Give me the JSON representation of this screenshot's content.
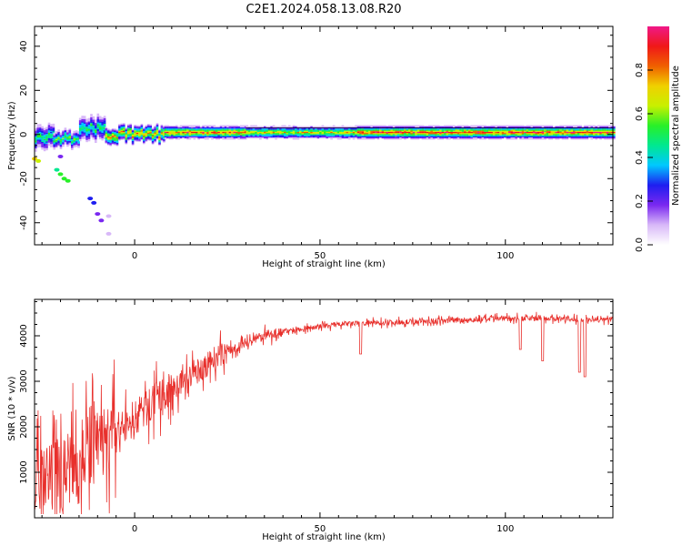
{
  "title": "C2E1.2024.058.13.08.R20",
  "colors": {
    "snr_line": "#e8302c",
    "colormap": [
      "#ffffff",
      "#d8b8f8",
      "#7a28f0",
      "#1e1ef0",
      "#00c8ff",
      "#00e890",
      "#28f028",
      "#c8f000",
      "#f0d000",
      "#f06000",
      "#f01818",
      "#f01888"
    ]
  },
  "chart_data": [
    {
      "type": "heatmap",
      "xlabel": "Height of straight line (km)",
      "ylabel": "Frequency (Hz)",
      "xlim": [
        -27,
        129
      ],
      "ylim": [
        -50,
        49
      ],
      "xticks": [
        0,
        50,
        100
      ],
      "yticks": [
        -40,
        -20,
        0,
        20,
        40
      ],
      "colorbar": {
        "label": "Normalized spectral amplitude",
        "range": [
          0,
          1
        ],
        "ticks": [
          "0.0",
          "0.2",
          "0.4",
          "0.6",
          "0.8"
        ]
      },
      "segments": [
        {
          "x": [
            -27,
            -22
          ],
          "freq": -1,
          "width": 6,
          "peak": 0.55
        },
        {
          "x": [
            -22,
            -15
          ],
          "freq": -2,
          "width": 4,
          "peak": 0.6
        },
        {
          "x": [
            -15,
            -8
          ],
          "freq": 3,
          "width": 6,
          "peak": 0.55
        },
        {
          "x": [
            -8,
            8
          ],
          "freq": 0,
          "width": 4,
          "peak": 0.85
        },
        {
          "x": [
            8,
            30
          ],
          "freq": 1,
          "width": 3,
          "peak": 0.9
        },
        {
          "x": [
            30,
            60
          ],
          "freq": 1,
          "width": 3,
          "peak": 0.75
        },
        {
          "x": [
            60,
            129
          ],
          "freq": 1,
          "width": 3,
          "peak": 0.95
        }
      ],
      "scatter_tail": [
        {
          "x": -27,
          "f": -11,
          "a": 0.7
        },
        {
          "x": -26,
          "f": -12,
          "a": 0.6
        },
        {
          "x": -21,
          "f": -16,
          "a": 0.45
        },
        {
          "x": -20,
          "f": -18,
          "a": 0.5
        },
        {
          "x": -19,
          "f": -20,
          "a": 0.55
        },
        {
          "x": -18,
          "f": -21,
          "a": 0.5
        },
        {
          "x": -12,
          "f": -29,
          "a": 0.3
        },
        {
          "x": -11,
          "f": -31,
          "a": 0.25
        },
        {
          "x": -10,
          "f": -36,
          "a": 0.15
        },
        {
          "x": -9,
          "f": -39,
          "a": 0.15
        },
        {
          "x": -7,
          "f": -37,
          "a": 0.1
        },
        {
          "x": -7,
          "f": -45,
          "a": 0.1
        },
        {
          "x": -20,
          "f": -10,
          "a": 0.2
        }
      ]
    },
    {
      "type": "line",
      "xlabel": "Height of straight line (km)",
      "ylabel": "SNR (10 * v/v)",
      "xlim": [
        -27,
        129
      ],
      "ylim": [
        0,
        4800
      ],
      "xticks": [
        0,
        50,
        100
      ],
      "yticks": [
        1000,
        2000,
        3000,
        4000
      ],
      "trend": {
        "x": [
          -27,
          -20,
          -15,
          -10,
          -5,
          0,
          5,
          10,
          15,
          20,
          25,
          30,
          35,
          40,
          45,
          50,
          55,
          60,
          70,
          80,
          90,
          100,
          110,
          120,
          129
        ],
        "y": [
          600,
          900,
          1300,
          1600,
          1800,
          2200,
          2500,
          2800,
          3100,
          3400,
          3650,
          3850,
          4000,
          4100,
          4150,
          4200,
          4250,
          4270,
          4300,
          4320,
          4350,
          4380,
          4400,
          4350,
          4350
        ]
      },
      "dips": [
        {
          "x": 61,
          "y": 3600
        },
        {
          "x": 104,
          "y": 3700
        },
        {
          "x": 110,
          "y": 3450
        },
        {
          "x": 120,
          "y": 3200
        },
        {
          "x": 121.5,
          "y": 3100
        }
      ]
    }
  ]
}
